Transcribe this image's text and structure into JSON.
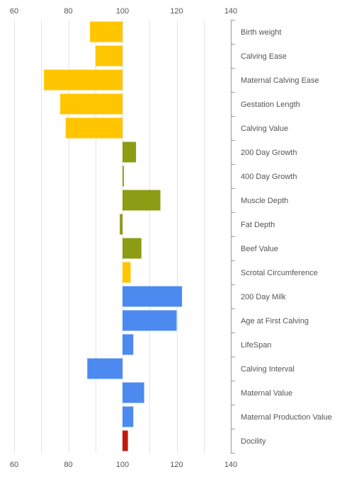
{
  "chart_data": {
    "type": "bar",
    "orientation": "horizontal",
    "baseline": 100,
    "xlim": [
      60,
      140
    ],
    "x_ticks": [
      60,
      80,
      100,
      120,
      140
    ],
    "x_tick_labels": [
      "60",
      "80",
      "100",
      "120",
      "140"
    ],
    "x_axis_position": "top and bottom",
    "y_axis_position": "right",
    "grid": true,
    "title": "",
    "xlabel": "",
    "ylabel": "",
    "categories": [
      "Birth weight",
      "Calving Ease",
      "Maternal Calving Ease",
      "Gestation Length",
      "Calving Value",
      "200 Day Growth",
      "400 Day Growth",
      "Muscle Depth",
      "Fat Depth",
      "Beef Value",
      "Scrotal Circumference",
      "200 Day Milk",
      "Age at First Calving",
      "LifeSpan",
      "Calving Interval",
      "Maternal Value",
      "Maternal Production Value",
      "Docility"
    ],
    "values": [
      88,
      90,
      71,
      77,
      79,
      105,
      100.5,
      114,
      99,
      107,
      103,
      122,
      120,
      104,
      87,
      108,
      104,
      102
    ],
    "bar_colors": [
      "#FFC600",
      "#FFC600",
      "#FFC600",
      "#FFC600",
      "#FFC600",
      "#8C9C14",
      "#8C9C14",
      "#8C9C14",
      "#8C9C14",
      "#8C9C14",
      "#FFC600",
      "#4D8AF0",
      "#4D8AF0",
      "#4D8AF0",
      "#4D8AF0",
      "#4D8AF0",
      "#4D8AF0",
      "#C4180F"
    ],
    "colors": {
      "grid": "#e3e3e3",
      "axis": "#999999",
      "text": "#555555"
    }
  }
}
